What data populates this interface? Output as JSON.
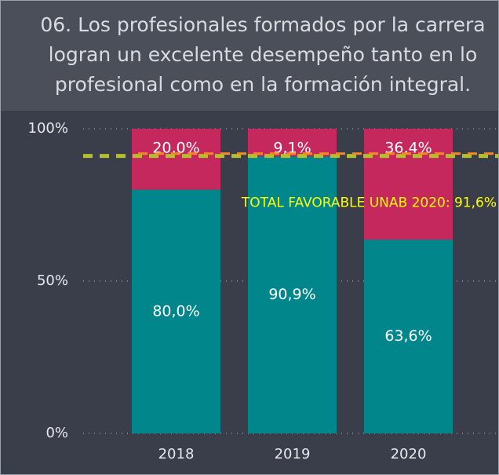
{
  "chart_data": {
    "type": "stacked_bar",
    "title": "06. Los profesionales formados por la carrera logran un excelente desempeño tanto en lo profesional como en la formación integral.",
    "categories": [
      "2018",
      "2019",
      "2020"
    ],
    "series": [
      {
        "color": "#00868b",
        "values": [
          80.0,
          90.9,
          63.6
        ],
        "value_labels": [
          "80,0%",
          "90,9%",
          "63,6%"
        ]
      },
      {
        "color": "#c4285d",
        "values": [
          20.0,
          9.1,
          36.4
        ],
        "value_labels": [
          "20,0%",
          "9,1%",
          "36,4%"
        ]
      }
    ],
    "ylim": [
      0,
      100
    ],
    "yticks": [
      {
        "value": 0,
        "label": "0%"
      },
      {
        "value": 50,
        "label": "50%"
      },
      {
        "value": 100,
        "label": "100%"
      }
    ],
    "grid": true,
    "reference_line": {
      "value": 91.6,
      "label": "TOTAL FAVORABLE UNAB 2020: 91,6%",
      "color": "#b3c02c",
      "overlay_color": "#f28a26",
      "label_color": "#ffff00"
    }
  }
}
